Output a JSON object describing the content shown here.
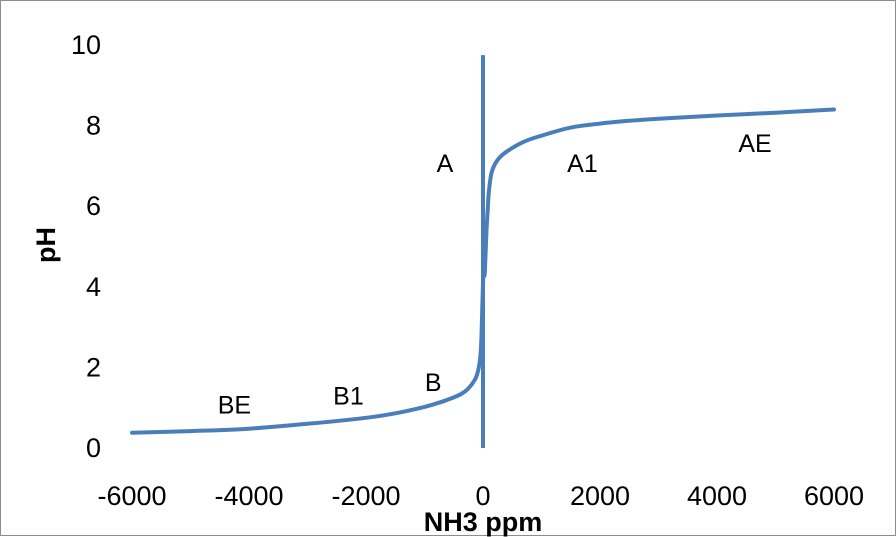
{
  "chart_data": {
    "type": "line",
    "title": "",
    "xlabel": "NH3 ppm",
    "ylabel": "pH",
    "xlim": [
      -6000,
      6000
    ],
    "ylim": [
      0,
      10
    ],
    "xticks": [
      -6000,
      -4000,
      -2000,
      0,
      2000,
      4000,
      6000
    ],
    "yticks": [
      0,
      2,
      4,
      6,
      8,
      10
    ],
    "x_tick_labels": [
      "-6000",
      "-4000",
      "-2000",
      "0",
      "2000",
      "4000",
      "6000"
    ],
    "y_tick_labels": [
      "0",
      "2",
      "4",
      "6",
      "8",
      "10"
    ],
    "grid": false,
    "legend": "none",
    "series": [
      {
        "color": "#4a7ebb",
        "x": [
          -6000,
          -5000,
          -4000,
          -3000,
          -2000,
          -1500,
          -1000,
          -700,
          -400,
          -250,
          -120,
          -60,
          -30,
          -10,
          0,
          10,
          30,
          60,
          80,
          100,
          150,
          250,
          400,
          700,
          1000,
          1500,
          2000,
          2500,
          3000,
          4000,
          5000,
          6000
        ],
        "y": [
          0.38,
          0.42,
          0.48,
          0.6,
          0.75,
          0.86,
          1.02,
          1.15,
          1.32,
          1.48,
          1.75,
          2.1,
          2.6,
          3.6,
          4.1,
          4.3,
          4.35,
          5.4,
          5.9,
          6.35,
          6.85,
          7.15,
          7.35,
          7.6,
          7.75,
          7.95,
          8.05,
          8.12,
          8.17,
          8.25,
          8.32,
          8.4
        ]
      }
    ],
    "vertical_line": {
      "x": 0,
      "y_range": [
        0,
        9.75
      ],
      "color": "#4a7ebb"
    },
    "annotations": [
      {
        "text": "A",
        "x": -650,
        "y": 6.85
      },
      {
        "text": "A1",
        "x": 1700,
        "y": 6.85
      },
      {
        "text": "AE",
        "x": 4650,
        "y": 7.35
      },
      {
        "text": "B",
        "x": -850,
        "y": 1.42
      },
      {
        "text": "B1",
        "x": -2300,
        "y": 1.08
      },
      {
        "text": "BE",
        "x": -4250,
        "y": 0.86
      }
    ]
  }
}
